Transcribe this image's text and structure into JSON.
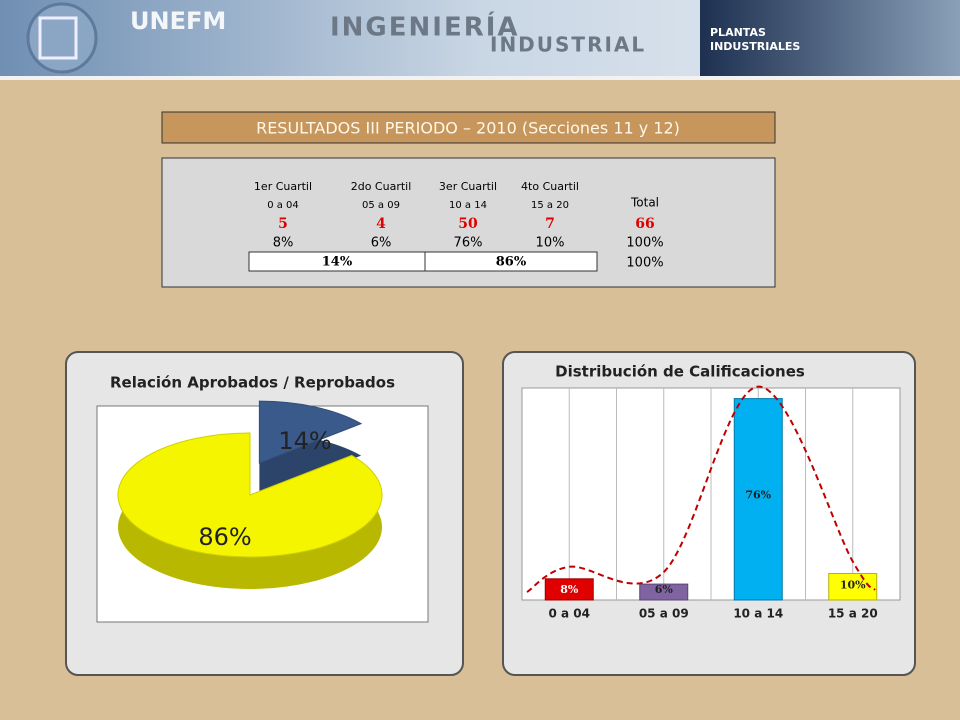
{
  "header": {
    "logo": "UNEFM",
    "title_line1": "INGENIERÍA",
    "title_line2": "INDUSTRIAL",
    "badge_line1": "PLANTAS",
    "badge_line2": "INDUSTRIALES"
  },
  "table": {
    "title": "RESULTADOS III PERIODO – 2010 (Secciones 11 y 12)",
    "columns": [
      {
        "name": "1er Cuartil",
        "range": "0 a 04"
      },
      {
        "name": "2do Cuartil",
        "range": "05 a 09"
      },
      {
        "name": "3er Cuartil",
        "range": "10 a 14"
      },
      {
        "name": "4to Cuartil",
        "range": "15 a 20"
      }
    ],
    "total_label": "Total",
    "counts": [
      "5",
      "4",
      "50",
      "7"
    ],
    "total": "66",
    "percents": [
      "8%",
      "6%",
      "76%",
      "10%"
    ],
    "total_percent": "100%",
    "groups": [
      "14%",
      "86%"
    ],
    "groups_total": "100%"
  },
  "chart_data": [
    {
      "type": "pie",
      "title": "Relación Aprobados / Reprobados",
      "values": [
        14,
        86
      ],
      "value_labels": [
        "14%",
        "86%"
      ],
      "colors": [
        "#3a5a8c",
        "#f5f500"
      ]
    },
    {
      "type": "bar",
      "title": "Distribución de Calificaciones",
      "categories": [
        "0 a 04",
        "05 a 09",
        "10 a 14",
        "15 a 20"
      ],
      "values": [
        8,
        6,
        76,
        10
      ],
      "value_labels": [
        "8%",
        "6%",
        "76%",
        "10%"
      ],
      "colors": [
        "#e00000",
        "#8064a2",
        "#00b0f0",
        "#ffff00"
      ],
      "ylim": [
        0,
        80
      ]
    }
  ]
}
